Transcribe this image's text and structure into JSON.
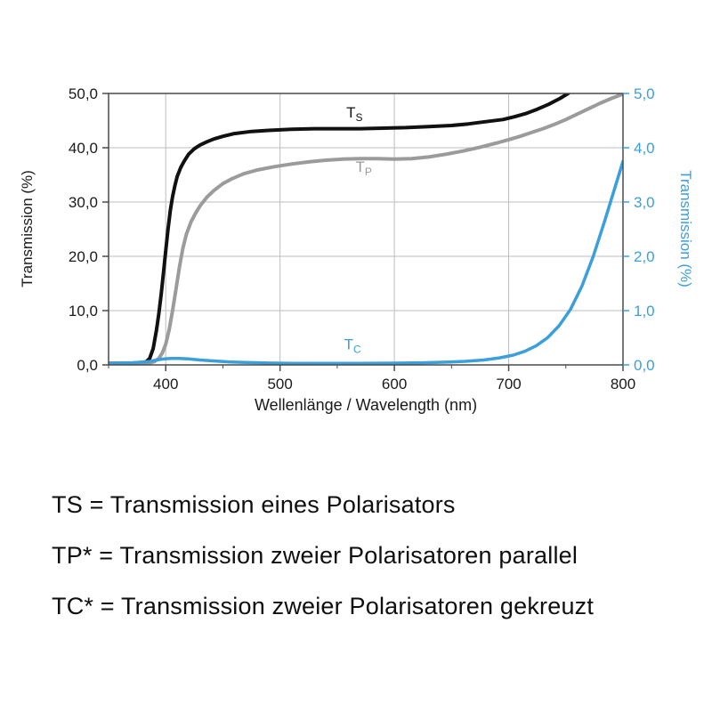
{
  "chart_data": {
    "type": "line",
    "title": "",
    "xlabel": "Wellenlänge / Wavelength (nm)",
    "ylabel_left": "Transmission (%)",
    "ylabel_right": "Transmission (%)",
    "xlim": [
      350,
      800
    ],
    "ylim_left": [
      0,
      50
    ],
    "ylim_right": [
      0,
      5
    ],
    "grid": true,
    "x_ticks": [
      {
        "v": 400,
        "label": "400"
      },
      {
        "v": 500,
        "label": "500"
      },
      {
        "v": 600,
        "label": "600"
      },
      {
        "v": 700,
        "label": "700"
      },
      {
        "v": 800,
        "label": "800"
      }
    ],
    "x_minor_ticks": [
      350,
      450,
      550,
      650,
      750
    ],
    "y_ticks_left": [
      {
        "v": 0,
        "label": "0,0"
      },
      {
        "v": 10,
        "label": "10,0"
      },
      {
        "v": 20,
        "label": "20,0"
      },
      {
        "v": 30,
        "label": "30,0"
      },
      {
        "v": 40,
        "label": "40,0"
      },
      {
        "v": 50,
        "label": "50,0"
      }
    ],
    "y_ticks_right": [
      {
        "v": 0,
        "label": "0,0"
      },
      {
        "v": 1,
        "label": "1,0"
      },
      {
        "v": 2,
        "label": "2,0"
      },
      {
        "v": 3,
        "label": "3,0"
      },
      {
        "v": 4,
        "label": "4,0"
      },
      {
        "v": 5,
        "label": "5,0"
      }
    ],
    "colors": {
      "grid": "#bdbdbd",
      "axis": "#4a4a4a",
      "text": "#1a1a1a",
      "blue": "#3b9fdb",
      "black": "#111111",
      "gray": "#9b9b9b"
    },
    "series": [
      {
        "name": "TS",
        "axis": "left",
        "color": "#111111",
        "width": 4,
        "label": {
          "text": "T",
          "sub": "S",
          "nm": 558,
          "val": 45.6
        },
        "points": [
          [
            350,
            0.3
          ],
          [
            365,
            0.3
          ],
          [
            378,
            0.35
          ],
          [
            383,
            0.6
          ],
          [
            386,
            1.2
          ],
          [
            389,
            3
          ],
          [
            392,
            6.5
          ],
          [
            394,
            9.5
          ],
          [
            396,
            13
          ],
          [
            398,
            17
          ],
          [
            400,
            21
          ],
          [
            402,
            25
          ],
          [
            404,
            28.5
          ],
          [
            406,
            31
          ],
          [
            408,
            33
          ],
          [
            410,
            34.7
          ],
          [
            413,
            36.3
          ],
          [
            416,
            37.5
          ],
          [
            420,
            38.8
          ],
          [
            425,
            39.8
          ],
          [
            430,
            40.5
          ],
          [
            436,
            41.1
          ],
          [
            442,
            41.6
          ],
          [
            450,
            42.1
          ],
          [
            460,
            42.6
          ],
          [
            475,
            43.0
          ],
          [
            490,
            43.2
          ],
          [
            510,
            43.4
          ],
          [
            530,
            43.5
          ],
          [
            550,
            43.5
          ],
          [
            570,
            43.5
          ],
          [
            590,
            43.6
          ],
          [
            610,
            43.7
          ],
          [
            630,
            43.9
          ],
          [
            650,
            44.1
          ],
          [
            665,
            44.4
          ],
          [
            680,
            44.8
          ],
          [
            695,
            45.2
          ],
          [
            705,
            45.7
          ],
          [
            715,
            46.3
          ],
          [
            725,
            47.1
          ],
          [
            735,
            48.0
          ],
          [
            745,
            49.1
          ],
          [
            752,
            50.0
          ],
          [
            758,
            51.0
          ]
        ]
      },
      {
        "name": "TP",
        "axis": "left",
        "color": "#9b9b9b",
        "width": 4,
        "label": {
          "text": "T",
          "sub": "P",
          "nm": 566,
          "val": 35.6
        },
        "points": [
          [
            350,
            0.2
          ],
          [
            370,
            0.25
          ],
          [
            385,
            0.35
          ],
          [
            390,
            0.6
          ],
          [
            394,
            1.2
          ],
          [
            397,
            2.2
          ],
          [
            400,
            3.8
          ],
          [
            403,
            6.5
          ],
          [
            406,
            10
          ],
          [
            409,
            14
          ],
          [
            412,
            18
          ],
          [
            415,
            21.5
          ],
          [
            418,
            24
          ],
          [
            422,
            26.3
          ],
          [
            426,
            27.9
          ],
          [
            430,
            29.3
          ],
          [
            436,
            30.9
          ],
          [
            442,
            32.1
          ],
          [
            450,
            33.4
          ],
          [
            458,
            34.3
          ],
          [
            468,
            35.2
          ],
          [
            480,
            35.9
          ],
          [
            495,
            36.5
          ],
          [
            510,
            37.0
          ],
          [
            525,
            37.4
          ],
          [
            540,
            37.7
          ],
          [
            555,
            37.9
          ],
          [
            570,
            38.0
          ],
          [
            585,
            38.0
          ],
          [
            600,
            37.9
          ],
          [
            615,
            38.0
          ],
          [
            630,
            38.3
          ],
          [
            645,
            38.8
          ],
          [
            660,
            39.4
          ],
          [
            675,
            40.1
          ],
          [
            690,
            40.9
          ],
          [
            700,
            41.5
          ],
          [
            710,
            42.1
          ],
          [
            720,
            42.8
          ],
          [
            730,
            43.5
          ],
          [
            740,
            44.3
          ],
          [
            750,
            45.2
          ],
          [
            760,
            46.2
          ],
          [
            770,
            47.2
          ],
          [
            780,
            48.2
          ],
          [
            790,
            49.1
          ],
          [
            800,
            49.9
          ]
        ]
      },
      {
        "name": "TC",
        "axis": "right",
        "color": "#3b9fdb",
        "width": 3.5,
        "label": {
          "text": "T",
          "sub": "C",
          "nm": 556,
          "val": 2.9
        },
        "points": [
          [
            350,
            0.03
          ],
          [
            370,
            0.04
          ],
          [
            385,
            0.06
          ],
          [
            392,
            0.09
          ],
          [
            398,
            0.11
          ],
          [
            405,
            0.12
          ],
          [
            412,
            0.12
          ],
          [
            420,
            0.11
          ],
          [
            430,
            0.09
          ],
          [
            440,
            0.075
          ],
          [
            455,
            0.055
          ],
          [
            470,
            0.045
          ],
          [
            490,
            0.035
          ],
          [
            510,
            0.03
          ],
          [
            540,
            0.03
          ],
          [
            570,
            0.03
          ],
          [
            600,
            0.032
          ],
          [
            625,
            0.04
          ],
          [
            645,
            0.05
          ],
          [
            662,
            0.065
          ],
          [
            678,
            0.09
          ],
          [
            692,
            0.13
          ],
          [
            704,
            0.18
          ],
          [
            714,
            0.25
          ],
          [
            724,
            0.35
          ],
          [
            734,
            0.5
          ],
          [
            744,
            0.72
          ],
          [
            754,
            1.02
          ],
          [
            764,
            1.45
          ],
          [
            774,
            2.0
          ],
          [
            784,
            2.65
          ],
          [
            792,
            3.2
          ],
          [
            800,
            3.75
          ]
        ]
      }
    ]
  },
  "legend": {
    "lines": [
      "TS = Transmission eines Polarisators",
      "TP* = Transmission zweier Polarisatoren parallel",
      "TC* = Transmission zweier Polarisatoren gekreuzt"
    ]
  }
}
